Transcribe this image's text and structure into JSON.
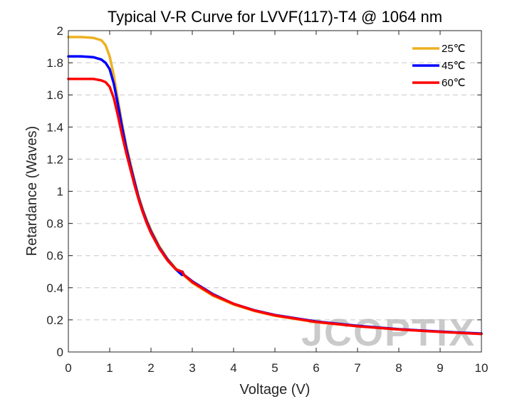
{
  "chart_data": {
    "type": "line",
    "title": "Typical V-R Curve for LVVF(117)-T4 @ 1064 nm",
    "xlabel": "Voltage (V)",
    "ylabel": "Retardance (Waves)",
    "xlim": [
      0,
      10
    ],
    "ylim": [
      0,
      2
    ],
    "xticks": [
      0,
      1,
      2,
      3,
      4,
      5,
      6,
      7,
      8,
      9,
      10
    ],
    "yticks": [
      0,
      0.2,
      0.4,
      0.6,
      0.8,
      1,
      1.2,
      1.4,
      1.6,
      1.8,
      2
    ],
    "grid": "horizontal dashed",
    "legend_position": "top-right",
    "series": [
      {
        "name": "25℃",
        "color": "#EDB120",
        "x": [
          0,
          0.3,
          0.6,
          0.8,
          0.9,
          1.0,
          1.1,
          1.2,
          1.3,
          1.4,
          1.5,
          1.6,
          1.7,
          1.8,
          1.9,
          2.0,
          2.2,
          2.4,
          2.6,
          2.8,
          3.0,
          3.5,
          4.0,
          4.5,
          5.0,
          6.0,
          7.0,
          8.0,
          9.0,
          10.0
        ],
        "y": [
          1.96,
          1.96,
          1.955,
          1.94,
          1.91,
          1.84,
          1.72,
          1.57,
          1.42,
          1.29,
          1.18,
          1.07,
          0.97,
          0.89,
          0.82,
          0.76,
          0.66,
          0.58,
          0.52,
          0.475,
          0.43,
          0.35,
          0.295,
          0.255,
          0.225,
          0.185,
          0.16,
          0.14,
          0.125,
          0.113
        ]
      },
      {
        "name": "45℃",
        "color": "#0000FF",
        "x": [
          0,
          0.3,
          0.6,
          0.8,
          0.9,
          1.0,
          1.1,
          1.2,
          1.3,
          1.4,
          1.5,
          1.6,
          1.7,
          1.8,
          1.9,
          2.0,
          2.2,
          2.4,
          2.6,
          2.75,
          2.76,
          2.8,
          3.0,
          3.5,
          4.0,
          4.5,
          5.0,
          6.0,
          7.0,
          8.0,
          9.0,
          10.0
        ],
        "y": [
          1.84,
          1.84,
          1.835,
          1.82,
          1.8,
          1.76,
          1.67,
          1.54,
          1.4,
          1.27,
          1.16,
          1.06,
          0.96,
          0.88,
          0.81,
          0.75,
          0.65,
          0.575,
          0.515,
          0.48,
          0.5,
          0.48,
          0.44,
          0.36,
          0.3,
          0.26,
          0.23,
          0.19,
          0.163,
          0.142,
          0.127,
          0.115
        ]
      },
      {
        "name": "60℃",
        "color": "#FF0000",
        "x": [
          0,
          0.3,
          0.6,
          0.8,
          0.9,
          1.0,
          1.1,
          1.2,
          1.3,
          1.4,
          1.5,
          1.6,
          1.7,
          1.8,
          1.9,
          2.0,
          2.2,
          2.4,
          2.6,
          2.75,
          2.8,
          3.0,
          3.5,
          4.0,
          4.5,
          5.0,
          6.0,
          7.0,
          8.0,
          9.0,
          10.0
        ],
        "y": [
          1.7,
          1.7,
          1.7,
          1.69,
          1.68,
          1.65,
          1.58,
          1.47,
          1.35,
          1.24,
          1.14,
          1.04,
          0.95,
          0.87,
          0.8,
          0.74,
          0.645,
          0.57,
          0.515,
          0.5,
          0.48,
          0.435,
          0.355,
          0.3,
          0.258,
          0.228,
          0.187,
          0.16,
          0.14,
          0.125,
          0.112
        ]
      }
    ]
  },
  "watermark": {
    "text": "JCOPTIX"
  }
}
